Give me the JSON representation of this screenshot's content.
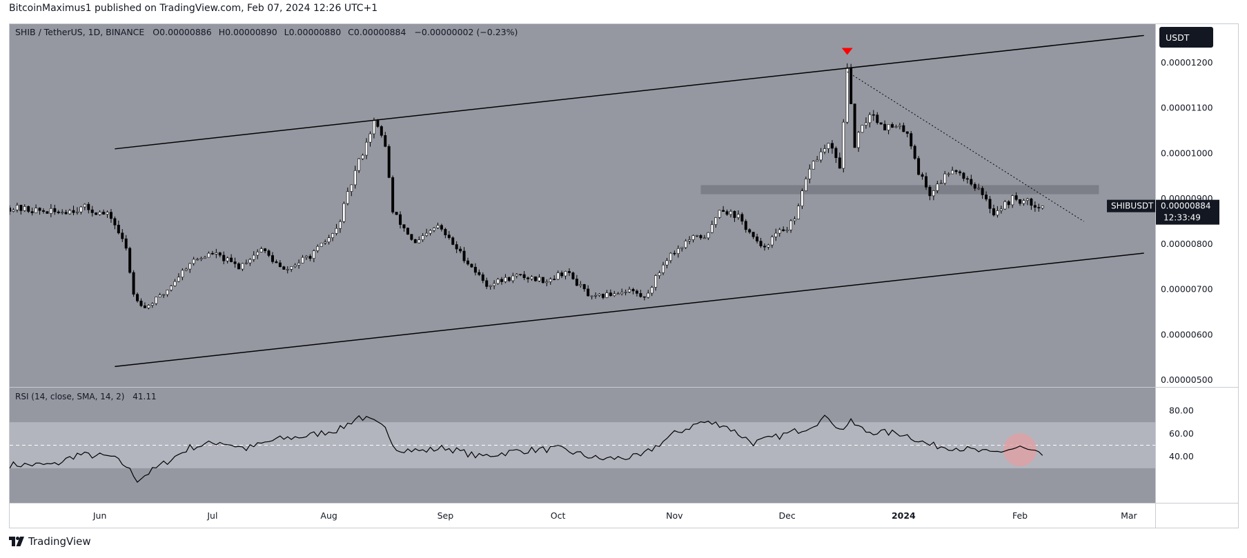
{
  "header": {
    "publish_line": "BitcoinMaximus1 published on TradingView.com, Feb 07, 2024 12:26 UTC+1"
  },
  "footer": {
    "brand": "TradingView"
  },
  "colors": {
    "pane_bg": "#9598a1",
    "rsi_band": "#b2b5be",
    "candle_up": "#ffffff",
    "candle_down": "#000000",
    "signal_marker": "#ff0000",
    "rsi_highlight": "#e0a0a4"
  },
  "chart_data": [
    {
      "type": "candlestick",
      "symbol_line": {
        "pair": "SHIB / TetherUS, 1D, BINANCE",
        "o_label": "O",
        "o_value": "0.00000886",
        "h_label": "H",
        "h_value": "0.00000890",
        "l_label": "L",
        "l_value": "0.00000880",
        "c_label": "C",
        "c_value": "0.00000884",
        "change": "−0.00000002 (−0.23%)"
      },
      "currency": "USDT",
      "price_tag": {
        "symbol": "SHIBUSDT",
        "value": "0.00000884",
        "countdown": "12:33:49",
        "price": 8.84e-06
      },
      "y_axis_ticks": [
        "0.00001200",
        "0.00001100",
        "0.00001000",
        "0.00000900",
        "0.00000800",
        "0.00000700",
        "0.00000600",
        "0.00000500"
      ],
      "ylim": [
        4.85e-06,
        1.285e-05
      ],
      "x_axis_ticks": [
        {
          "label": "Jun",
          "date": "2023-06-01"
        },
        {
          "label": "Jul",
          "date": "2023-07-01"
        },
        {
          "label": "Aug",
          "date": "2023-08-01"
        },
        {
          "label": "Sep",
          "date": "2023-09-01"
        },
        {
          "label": "Oct",
          "date": "2023-10-01"
        },
        {
          "label": "Nov",
          "date": "2023-11-01"
        },
        {
          "label": "Dec",
          "date": "2023-12-01"
        },
        {
          "label": "2024",
          "date": "2024-01-01"
        },
        {
          "label": "Feb",
          "date": "2024-02-01"
        },
        {
          "label": "Mar",
          "date": "2024-03-01"
        }
      ],
      "xlim": [
        "2023-05-08",
        "2024-03-08"
      ],
      "close_waypoints": [
        [
          "2023-05-08",
          8.8e-06
        ],
        [
          "2023-05-20",
          8.7e-06
        ],
        [
          "2023-05-28",
          8.8e-06
        ],
        [
          "2023-06-04",
          8.6e-06
        ],
        [
          "2023-06-08",
          7.9e-06
        ],
        [
          "2023-06-10",
          6.9e-06
        ],
        [
          "2023-06-13",
          6.6e-06
        ],
        [
          "2023-06-18",
          6.9e-06
        ],
        [
          "2023-06-25",
          7.6e-06
        ],
        [
          "2023-07-01",
          7.8e-06
        ],
        [
          "2023-07-08",
          7.5e-06
        ],
        [
          "2023-07-14",
          7.9e-06
        ],
        [
          "2023-07-20",
          7.4e-06
        ],
        [
          "2023-07-28",
          7.8e-06
        ],
        [
          "2023-08-03",
          8.3e-06
        ],
        [
          "2023-08-08",
          9.6e-06
        ],
        [
          "2023-08-13",
          1.07e-05
        ],
        [
          "2023-08-16",
          1.02e-05
        ],
        [
          "2023-08-18",
          8.7e-06
        ],
        [
          "2023-08-24",
          8e-06
        ],
        [
          "2023-08-30",
          8.4e-06
        ],
        [
          "2023-09-05",
          7.8e-06
        ],
        [
          "2023-09-12",
          7.1e-06
        ],
        [
          "2023-09-20",
          7.3e-06
        ],
        [
          "2023-09-28",
          7.2e-06
        ],
        [
          "2023-10-03",
          7.4e-06
        ],
        [
          "2023-10-10",
          6.8e-06
        ],
        [
          "2023-10-20",
          7e-06
        ],
        [
          "2023-10-24",
          6.8e-06
        ],
        [
          "2023-10-30",
          7.7e-06
        ],
        [
          "2023-11-05",
          8.1e-06
        ],
        [
          "2023-11-10",
          8.2e-06
        ],
        [
          "2023-11-13",
          8.8e-06
        ],
        [
          "2023-11-18",
          8.6e-06
        ],
        [
          "2023-11-24",
          7.9e-06
        ],
        [
          "2023-11-28",
          8.2e-06
        ],
        [
          "2023-12-03",
          8.5e-06
        ],
        [
          "2023-12-07",
          9.7e-06
        ],
        [
          "2023-12-12",
          1.02e-05
        ],
        [
          "2023-12-15",
          9.7e-06
        ],
        [
          "2023-12-17",
          1.18e-05
        ],
        [
          "2023-12-19",
          1.02e-05
        ],
        [
          "2023-12-23",
          1.09e-05
        ],
        [
          "2023-12-27",
          1.06e-05
        ],
        [
          "2024-01-02",
          1.05e-05
        ],
        [
          "2024-01-05",
          9.6e-06
        ],
        [
          "2024-01-08",
          9.1e-06
        ],
        [
          "2024-01-14",
          9.7e-06
        ],
        [
          "2024-01-20",
          9.3e-06
        ],
        [
          "2024-01-25",
          8.7e-06
        ],
        [
          "2024-01-30",
          9e-06
        ],
        [
          "2024-02-04",
          8.9e-06
        ],
        [
          "2024-02-07",
          8.84e-06
        ]
      ],
      "trendlines": [
        {
          "name": "channel-upper",
          "style": "solid",
          "from": [
            "2023-06-05",
            1.01e-05
          ],
          "to": [
            "2024-03-05",
            1.26e-05
          ]
        },
        {
          "name": "channel-lower",
          "style": "solid",
          "from": [
            "2023-06-05",
            5.3e-06
          ],
          "to": [
            "2024-03-05",
            7.8e-06
          ]
        },
        {
          "name": "descending-resistance",
          "style": "dotted",
          "from": [
            "2023-12-17",
            1.18e-05
          ],
          "to": [
            "2024-02-18",
            8.5e-06
          ]
        }
      ],
      "zone": {
        "from": "2023-11-08",
        "to": "2024-02-22",
        "low": 9.1e-06,
        "high": 9.3e-06
      },
      "marker": {
        "type": "down-triangle",
        "date": "2023-12-17",
        "price": 1.225e-05
      }
    },
    {
      "type": "line",
      "indicator": "RSI",
      "legend": "RSI (14, close, SMA, 14, 2)",
      "current_value": "41.11",
      "ylim": [
        0,
        100
      ],
      "y_axis_ticks": [
        "80.00",
        "60.00",
        "40.00"
      ],
      "band": [
        30,
        70
      ],
      "midline": 50,
      "waypoints": [
        [
          "2023-05-08",
          33
        ],
        [
          "2023-05-20",
          33
        ],
        [
          "2023-05-26",
          42
        ],
        [
          "2023-06-04",
          40
        ],
        [
          "2023-06-08",
          32
        ],
        [
          "2023-06-11",
          20
        ],
        [
          "2023-06-16",
          30
        ],
        [
          "2023-06-25",
          48
        ],
        [
          "2023-07-03",
          53
        ],
        [
          "2023-07-10",
          47
        ],
        [
          "2023-07-18",
          55
        ],
        [
          "2023-07-26",
          58
        ],
        [
          "2023-08-04",
          64
        ],
        [
          "2023-08-09",
          75
        ],
        [
          "2023-08-13",
          70
        ],
        [
          "2023-08-16",
          64
        ],
        [
          "2023-08-19",
          47
        ],
        [
          "2023-08-26",
          45
        ],
        [
          "2023-09-01",
          48
        ],
        [
          "2023-09-10",
          40
        ],
        [
          "2023-09-20",
          45
        ],
        [
          "2023-10-01",
          47
        ],
        [
          "2023-10-12",
          38
        ],
        [
          "2023-10-23",
          40
        ],
        [
          "2023-11-01",
          60
        ],
        [
          "2023-11-08",
          70
        ],
        [
          "2023-11-14",
          68
        ],
        [
          "2023-11-22",
          52
        ],
        [
          "2023-11-28",
          57
        ],
        [
          "2023-12-06",
          65
        ],
        [
          "2023-12-12",
          75
        ],
        [
          "2023-12-15",
          63
        ],
        [
          "2023-12-18",
          70
        ],
        [
          "2023-12-22",
          62
        ],
        [
          "2024-01-01",
          60
        ],
        [
          "2024-01-08",
          50
        ],
        [
          "2024-01-15",
          48
        ],
        [
          "2024-01-24",
          43
        ],
        [
          "2024-02-01",
          48
        ],
        [
          "2024-02-07",
          41.11
        ]
      ],
      "highlight": {
        "date": "2024-02-01",
        "value": 46
      }
    }
  ]
}
